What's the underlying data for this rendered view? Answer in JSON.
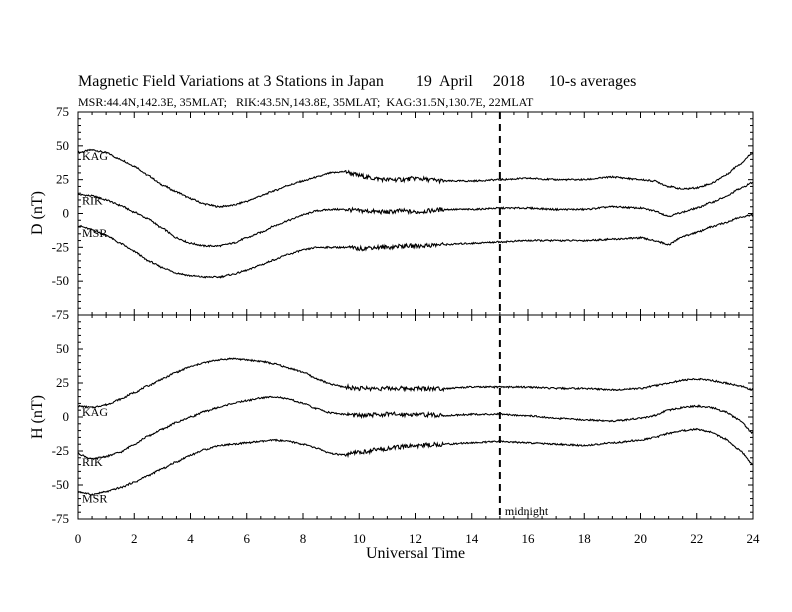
{
  "title": "Magnetic Field Variations at 3 Stations in Japan        19  April     2018      10-s averages",
  "subtitle": "MSR:44.4N,142.3E, 35MLAT;   RIK:43.5N,143.8E, 35MLAT;  KAG:31.5N,130.7E, 22MLAT",
  "chart_data": [
    {
      "type": "line",
      "ylabel": "D (nT)",
      "xlabel": "",
      "xlim": [
        0,
        24
      ],
      "ylim": [
        -75,
        75
      ],
      "xticks": [
        0,
        2,
        4,
        6,
        8,
        10,
        12,
        14,
        16,
        18,
        20,
        22,
        24
      ],
      "yticks": [
        -75,
        -50,
        -25,
        0,
        25,
        50,
        75
      ],
      "series": [
        {
          "name": "KAG",
          "points": [
            [
              0,
              45
            ],
            [
              0.5,
              47
            ],
            [
              1,
              45
            ],
            [
              1.5,
              40
            ],
            [
              2,
              35
            ],
            [
              2.5,
              28
            ],
            [
              3,
              21
            ],
            [
              3.5,
              16
            ],
            [
              4,
              11
            ],
            [
              4.5,
              7
            ],
            [
              5,
              5
            ],
            [
              5.5,
              6
            ],
            [
              6,
              9
            ],
            [
              6.5,
              13
            ],
            [
              7,
              17
            ],
            [
              7.5,
              21
            ],
            [
              8,
              24
            ],
            [
              8.5,
              27
            ],
            [
              9,
              30
            ],
            [
              9.5,
              31
            ],
            [
              10,
              28
            ],
            [
              10.5,
              26
            ],
            [
              11,
              25
            ],
            [
              11.5,
              25
            ],
            [
              12,
              26
            ],
            [
              12.5,
              25
            ],
            [
              13,
              24
            ],
            [
              14,
              24
            ],
            [
              15,
              25
            ],
            [
              16,
              26
            ],
            [
              17,
              25
            ],
            [
              18,
              25
            ],
            [
              19,
              27
            ],
            [
              20,
              25
            ],
            [
              20.5,
              24
            ],
            [
              21,
              20
            ],
            [
              21.5,
              18
            ],
            [
              22,
              19
            ],
            [
              22.5,
              22
            ],
            [
              23,
              28
            ],
            [
              23.5,
              36
            ],
            [
              24,
              45
            ]
          ]
        },
        {
          "name": "RIK",
          "points": [
            [
              0,
              14
            ],
            [
              0.5,
              13
            ],
            [
              1,
              10
            ],
            [
              1.5,
              6
            ],
            [
              2,
              1
            ],
            [
              2.5,
              -4
            ],
            [
              3,
              -11
            ],
            [
              3.5,
              -18
            ],
            [
              4,
              -22
            ],
            [
              4.5,
              -24
            ],
            [
              5,
              -24
            ],
            [
              5.5,
              -22
            ],
            [
              6,
              -18
            ],
            [
              6.5,
              -14
            ],
            [
              7,
              -9
            ],
            [
              7.5,
              -5
            ],
            [
              8,
              -1
            ],
            [
              8.5,
              2
            ],
            [
              9,
              3
            ],
            [
              9.5,
              3
            ],
            [
              10,
              2
            ],
            [
              11,
              1
            ],
            [
              11.5,
              2
            ],
            [
              12,
              1
            ],
            [
              12.5,
              2
            ],
            [
              13,
              3
            ],
            [
              14,
              3
            ],
            [
              15,
              4
            ],
            [
              16,
              4
            ],
            [
              17,
              3
            ],
            [
              18,
              3
            ],
            [
              19,
              5
            ],
            [
              20,
              4
            ],
            [
              20.5,
              2
            ],
            [
              21,
              -2
            ],
            [
              21.5,
              1
            ],
            [
              22,
              4
            ],
            [
              22.5,
              8
            ],
            [
              23,
              12
            ],
            [
              23.5,
              18
            ],
            [
              24,
              23
            ]
          ]
        },
        {
          "name": "MSR",
          "points": [
            [
              0,
              -9
            ],
            [
              0.5,
              -12
            ],
            [
              1,
              -16
            ],
            [
              1.5,
              -22
            ],
            [
              2,
              -28
            ],
            [
              2.5,
              -35
            ],
            [
              3,
              -40
            ],
            [
              3.5,
              -44
            ],
            [
              4,
              -46
            ],
            [
              4.5,
              -47
            ],
            [
              5,
              -47
            ],
            [
              5.5,
              -45
            ],
            [
              6,
              -42
            ],
            [
              6.5,
              -38
            ],
            [
              7,
              -34
            ],
            [
              7.5,
              -30
            ],
            [
              8,
              -27
            ],
            [
              8.5,
              -25
            ],
            [
              9,
              -25
            ],
            [
              9.5,
              -25
            ],
            [
              10,
              -26
            ],
            [
              10.5,
              -25
            ],
            [
              11,
              -25
            ],
            [
              11.5,
              -24
            ],
            [
              12,
              -24
            ],
            [
              13,
              -23
            ],
            [
              14,
              -22
            ],
            [
              15,
              -21
            ],
            [
              16,
              -20
            ],
            [
              17,
              -20
            ],
            [
              18,
              -20
            ],
            [
              19,
              -19
            ],
            [
              20,
              -18
            ],
            [
              20.5,
              -20
            ],
            [
              21,
              -23
            ],
            [
              21.5,
              -17
            ],
            [
              22,
              -14
            ],
            [
              22.5,
              -10
            ],
            [
              23,
              -7
            ],
            [
              23.5,
              -3
            ],
            [
              24,
              -1
            ]
          ]
        }
      ]
    },
    {
      "type": "line",
      "ylabel": "H (nT)",
      "xlabel": "Universal Time",
      "xlim": [
        0,
        24
      ],
      "ylim": [
        -75,
        75
      ],
      "xticks": [
        0,
        2,
        4,
        6,
        8,
        10,
        12,
        14,
        16,
        18,
        20,
        22,
        24
      ],
      "yticks": [
        -75,
        -50,
        -25,
        0,
        25,
        50,
        75
      ],
      "series": [
        {
          "name": "KAG",
          "points": [
            [
              0,
              8
            ],
            [
              0.5,
              7
            ],
            [
              1,
              9
            ],
            [
              1.5,
              13
            ],
            [
              2,
              18
            ],
            [
              2.5,
              23
            ],
            [
              3,
              28
            ],
            [
              3.5,
              33
            ],
            [
              4,
              37
            ],
            [
              4.5,
              40
            ],
            [
              5,
              42
            ],
            [
              5.5,
              43
            ],
            [
              6,
              42
            ],
            [
              6.5,
              41
            ],
            [
              7,
              39
            ],
            [
              7.5,
              36
            ],
            [
              8,
              33
            ],
            [
              8.5,
              28
            ],
            [
              9,
              24
            ],
            [
              9.5,
              22
            ],
            [
              10,
              21
            ],
            [
              11,
              21
            ],
            [
              12,
              21
            ],
            [
              13,
              21
            ],
            [
              14,
              22
            ],
            [
              15,
              22
            ],
            [
              16,
              22
            ],
            [
              17,
              21
            ],
            [
              18,
              21
            ],
            [
              19,
              20
            ],
            [
              20,
              21
            ],
            [
              20.5,
              23
            ],
            [
              21,
              25
            ],
            [
              21.5,
              27
            ],
            [
              22,
              28
            ],
            [
              22.5,
              27
            ],
            [
              23,
              25
            ],
            [
              23.5,
              23
            ],
            [
              24,
              20
            ]
          ]
        },
        {
          "name": "RIK",
          "points": [
            [
              0,
              -27
            ],
            [
              0.5,
              -31
            ],
            [
              1,
              -29
            ],
            [
              1.5,
              -26
            ],
            [
              2,
              -20
            ],
            [
              2.5,
              -14
            ],
            [
              3,
              -9
            ],
            [
              3.5,
              -4
            ],
            [
              4,
              0
            ],
            [
              4.5,
              4
            ],
            [
              5,
              7
            ],
            [
              5.5,
              10
            ],
            [
              6,
              12
            ],
            [
              6.5,
              14
            ],
            [
              7,
              15
            ],
            [
              7.5,
              13
            ],
            [
              8,
              10
            ],
            [
              8.5,
              6
            ],
            [
              9,
              3
            ],
            [
              9.5,
              2
            ],
            [
              10,
              1
            ],
            [
              11,
              2
            ],
            [
              12,
              2
            ],
            [
              13,
              1
            ],
            [
              14,
              2
            ],
            [
              15,
              2
            ],
            [
              16,
              1
            ],
            [
              17,
              -1
            ],
            [
              18,
              -2
            ],
            [
              19,
              -3
            ],
            [
              20,
              -1
            ],
            [
              20.5,
              1
            ],
            [
              21,
              5
            ],
            [
              21.5,
              7
            ],
            [
              22,
              8
            ],
            [
              22.5,
              7
            ],
            [
              23,
              4
            ],
            [
              23.5,
              -2
            ],
            [
              24,
              -12
            ]
          ]
        },
        {
          "name": "MSR",
          "points": [
            [
              0,
              -55
            ],
            [
              0.5,
              -57
            ],
            [
              1,
              -55
            ],
            [
              1.5,
              -52
            ],
            [
              2,
              -48
            ],
            [
              2.5,
              -43
            ],
            [
              3,
              -38
            ],
            [
              3.5,
              -33
            ],
            [
              4,
              -28
            ],
            [
              4.5,
              -24
            ],
            [
              5,
              -21
            ],
            [
              5.5,
              -20
            ],
            [
              6,
              -19
            ],
            [
              6.5,
              -18
            ],
            [
              7,
              -17
            ],
            [
              7.5,
              -18
            ],
            [
              8,
              -20
            ],
            [
              8.5,
              -23
            ],
            [
              9,
              -27
            ],
            [
              9.5,
              -28
            ],
            [
              10,
              -26
            ],
            [
              11,
              -23
            ],
            [
              12,
              -21
            ],
            [
              13,
              -20
            ],
            [
              14,
              -19
            ],
            [
              15,
              -18
            ],
            [
              16,
              -19
            ],
            [
              17,
              -20
            ],
            [
              18,
              -21
            ],
            [
              19,
              -19
            ],
            [
              20,
              -17
            ],
            [
              20.5,
              -15
            ],
            [
              21,
              -12
            ],
            [
              21.5,
              -10
            ],
            [
              22,
              -9
            ],
            [
              22.5,
              -11
            ],
            [
              23,
              -16
            ],
            [
              23.5,
              -24
            ],
            [
              24,
              -35
            ]
          ]
        }
      ]
    }
  ],
  "annotation": {
    "x": 15,
    "text": "midnight"
  }
}
